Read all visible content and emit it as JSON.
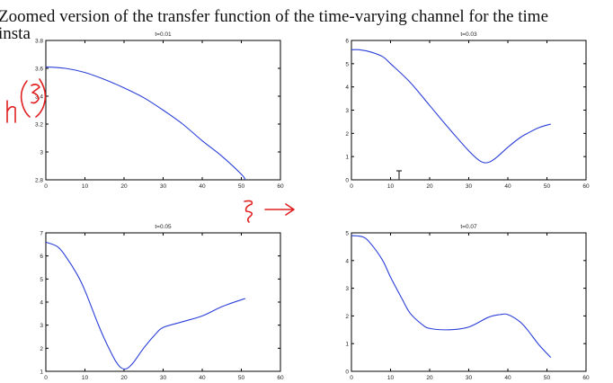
{
  "heading": {
    "line1": "Zoomed version of the transfer function of the time-varying channel for the time",
    "line2": "insta"
  },
  "styles": {
    "curve_color": "#2b3fd8",
    "ink_color": "#e02020"
  },
  "annotations": {
    "ylabel_icon": "handwritten-h-of-xi-icon",
    "xlabel_icon": "handwritten-xi-arrow-icon",
    "cursor_icon": "text-cursor-icon"
  },
  "chart_data": [
    {
      "type": "line",
      "title": "t=0.01",
      "xlim": [
        0,
        60
      ],
      "ylim": [
        2.8,
        3.8
      ],
      "xticks": [
        0,
        10,
        20,
        30,
        40,
        50,
        60
      ],
      "yticks": [
        2.8,
        3,
        3.2,
        3.4,
        3.6,
        3.8
      ],
      "x": [
        0,
        5,
        10,
        15,
        20,
        25,
        30,
        35,
        40,
        45,
        50,
        51
      ],
      "y": [
        3.61,
        3.6,
        3.57,
        3.52,
        3.46,
        3.39,
        3.3,
        3.2,
        3.08,
        2.97,
        2.84,
        2.8
      ]
    },
    {
      "type": "line",
      "title": "t=0.03",
      "xlim": [
        0,
        60
      ],
      "ylim": [
        0,
        6
      ],
      "xticks": [
        0,
        10,
        20,
        30,
        40,
        50,
        60
      ],
      "yticks": [
        0,
        1,
        2,
        3,
        4,
        5,
        6
      ],
      "x": [
        0,
        2,
        5,
        8,
        10,
        15,
        20,
        25,
        30,
        33,
        35,
        37,
        40,
        43,
        45,
        48,
        51
      ],
      "y": [
        5.6,
        5.6,
        5.5,
        5.3,
        5.0,
        4.2,
        3.2,
        2.2,
        1.25,
        0.8,
        0.75,
        0.95,
        1.4,
        1.8,
        2.0,
        2.25,
        2.4
      ]
    },
    {
      "type": "line",
      "title": "t=0.05",
      "xlim": [
        0,
        60
      ],
      "ylim": [
        1,
        7
      ],
      "xticks": [
        0,
        10,
        20,
        30,
        40,
        50,
        60
      ],
      "yticks": [
        1,
        2,
        3,
        4,
        5,
        6,
        7
      ],
      "x": [
        0,
        3,
        5,
        8,
        10,
        13,
        15,
        18,
        20,
        22,
        25,
        28,
        30,
        35,
        40,
        45,
        50,
        51
      ],
      "y": [
        6.6,
        6.4,
        6.0,
        5.2,
        4.5,
        3.2,
        2.4,
        1.4,
        1.1,
        1.3,
        2.0,
        2.6,
        2.9,
        3.15,
        3.4,
        3.8,
        4.1,
        4.15
      ]
    },
    {
      "type": "line",
      "title": "t=0.07",
      "xlim": [
        0,
        60
      ],
      "ylim": [
        0,
        5
      ],
      "xticks": [
        0,
        10,
        20,
        30,
        40,
        50,
        60
      ],
      "yticks": [
        0,
        1,
        2,
        3,
        4,
        5
      ],
      "x": [
        0,
        3,
        5,
        8,
        10,
        13,
        15,
        18,
        20,
        25,
        30,
        35,
        38,
        40,
        43,
        45,
        48,
        51
      ],
      "y": [
        4.9,
        4.85,
        4.6,
        4.0,
        3.4,
        2.6,
        2.1,
        1.7,
        1.55,
        1.5,
        1.6,
        1.95,
        2.05,
        2.05,
        1.8,
        1.5,
        0.95,
        0.5
      ]
    }
  ]
}
